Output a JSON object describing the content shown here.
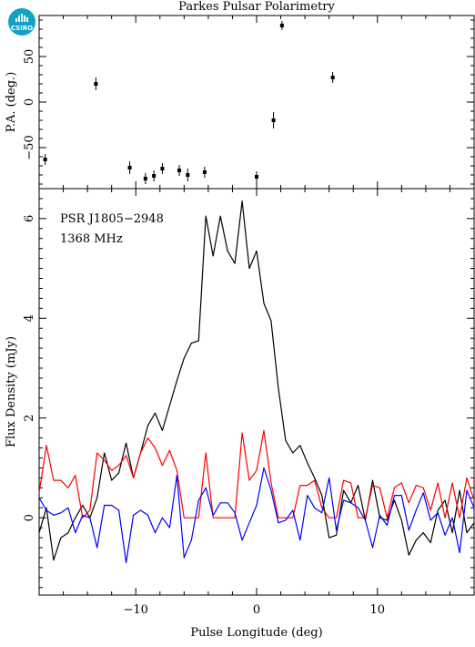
{
  "title": "Parkes Pulsar Polarimetry",
  "logo_text": "CSIRO",
  "colors": {
    "total_intensity": "#000000",
    "linear": "#ff0000",
    "circular": "#0000ff"
  },
  "chart_data": [
    {
      "type": "scatter",
      "ylabel": "P.A. (deg.)",
      "xlim": [
        -18,
        18
      ],
      "ylim": [
        -95,
        95
      ],
      "yticks": [
        -50,
        0,
        50
      ],
      "ytick_labels": [
        "−50",
        "0",
        "50"
      ],
      "points": [
        {
          "x": -17.5,
          "y": -63,
          "err": 6
        },
        {
          "x": -13.3,
          "y": 20,
          "err": 7
        },
        {
          "x": -10.5,
          "y": -72,
          "err": 7
        },
        {
          "x": -9.2,
          "y": -84,
          "err": 6
        },
        {
          "x": -8.5,
          "y": -81,
          "err": 6
        },
        {
          "x": -7.8,
          "y": -73,
          "err": 6
        },
        {
          "x": -6.4,
          "y": -75,
          "err": 6
        },
        {
          "x": -5.7,
          "y": -80,
          "err": 7
        },
        {
          "x": -4.3,
          "y": -77,
          "err": 6
        },
        {
          "x": 0,
          "y": -82,
          "err": 6
        },
        {
          "x": 1.4,
          "y": -20,
          "err": 9
        },
        {
          "x": 2.1,
          "y": 84,
          "err": 5
        },
        {
          "x": 6.3,
          "y": 27,
          "err": 6
        }
      ]
    },
    {
      "type": "line",
      "annotation": [
        "PSR J1805−2948",
        "1368 MHz"
      ],
      "xlabel": "Pulse Longitude (deg)",
      "ylabel": "Flux Density (mJy)",
      "xlim": [
        -18,
        18
      ],
      "ylim": [
        -1.55,
        6.6
      ],
      "xticks": [
        -10,
        0,
        10
      ],
      "xtick_labels": [
        "−10",
        "0",
        "10"
      ],
      "yticks": [
        0,
        2,
        4,
        6
      ],
      "ytick_labels": [
        "0",
        "2",
        "4",
        "6"
      ],
      "x": [
        -18,
        -17.4,
        -16.8,
        -16.2,
        -15.6,
        -15,
        -14.4,
        -13.8,
        -13.2,
        -12.6,
        -12,
        -11.4,
        -10.8,
        -10.2,
        -9.6,
        -9,
        -8.4,
        -7.8,
        -7.2,
        -6.6,
        -6,
        -5.4,
        -4.8,
        -4.2,
        -3.6,
        -3,
        -2.4,
        -1.8,
        -1.2,
        -0.6,
        0,
        0.6,
        1.2,
        1.8,
        2.4,
        3,
        3.6,
        4.2,
        4.8,
        5.4,
        6,
        6.6,
        7.2,
        7.8,
        8.4,
        9,
        9.6,
        10.2,
        10.8,
        11.4,
        12,
        12.6,
        13.2,
        13.8,
        14.4,
        15,
        15.6,
        16.2,
        16.8,
        17.4,
        18
      ],
      "series": [
        {
          "color": "#000000",
          "values": [
            -0.3,
            0.2,
            -0.85,
            -0.4,
            -0.3,
            0.0,
            0.25,
            0.0,
            0.4,
            1.3,
            0.75,
            0.9,
            1.5,
            0.8,
            1.3,
            1.85,
            2.1,
            1.75,
            2.25,
            2.75,
            3.2,
            3.5,
            3.55,
            6.05,
            5.25,
            6.05,
            5.35,
            5.1,
            6.35,
            5.0,
            5.35,
            4.3,
            3.95,
            2.6,
            1.55,
            1.3,
            1.45,
            1.1,
            0.8,
            0.45,
            -0.4,
            -0.35,
            0.55,
            0.3,
            0.65,
            -0.05,
            0.75,
            0.0,
            -0.05,
            0.35,
            -0.05,
            -0.75,
            -0.45,
            -0.3,
            -0.5,
            0.15,
            0.35,
            -0.3,
            0.55,
            -0.3,
            -0.1
          ]
        },
        {
          "color": "#ff0000",
          "values": [
            0.5,
            1.45,
            0.75,
            0.75,
            0.6,
            0.85,
            0.0,
            0.15,
            1.3,
            1.15,
            0.95,
            1.05,
            1.25,
            0.8,
            1.3,
            1.6,
            1.4,
            1.05,
            1.35,
            0.95,
            0.0,
            0.0,
            0.0,
            1.3,
            0.0,
            0.0,
            0.0,
            0.0,
            1.7,
            0.75,
            0.95,
            1.75,
            0.7,
            0.0,
            0.0,
            0.0,
            0.65,
            0.65,
            0.75,
            0.2,
            0.0,
            0.0,
            0.75,
            0.7,
            0.0,
            0.0,
            0.65,
            0.6,
            0.0,
            0.6,
            0.7,
            0.3,
            0.65,
            0.6,
            0.15,
            0.7,
            0.0,
            0.7,
            0.0,
            0.8,
            0.35
          ]
        },
        {
          "color": "#0000ff",
          "values": [
            0.4,
            0.15,
            0.05,
            0.1,
            0.2,
            -0.3,
            0.05,
            0.0,
            -0.6,
            0.25,
            0.25,
            0.15,
            -0.9,
            0.05,
            0.15,
            0.05,
            -0.3,
            0.0,
            -0.2,
            0.85,
            -0.8,
            -0.45,
            0.35,
            0.6,
            0.05,
            0.3,
            0.3,
            0.1,
            -0.45,
            -0.1,
            0.25,
            1.0,
            0.55,
            -0.1,
            -0.05,
            0.15,
            -0.45,
            0.45,
            0.2,
            0.1,
            0.8,
            -0.25,
            0.35,
            0.3,
            0.2,
            -0.05,
            -0.6,
            0.05,
            -0.15,
            0.45,
            0.45,
            -0.25,
            0.15,
            0.5,
            -0.05,
            0.1,
            -0.35,
            0.0,
            -0.7,
            0.55,
            0.2
          ]
        }
      ]
    }
  ]
}
